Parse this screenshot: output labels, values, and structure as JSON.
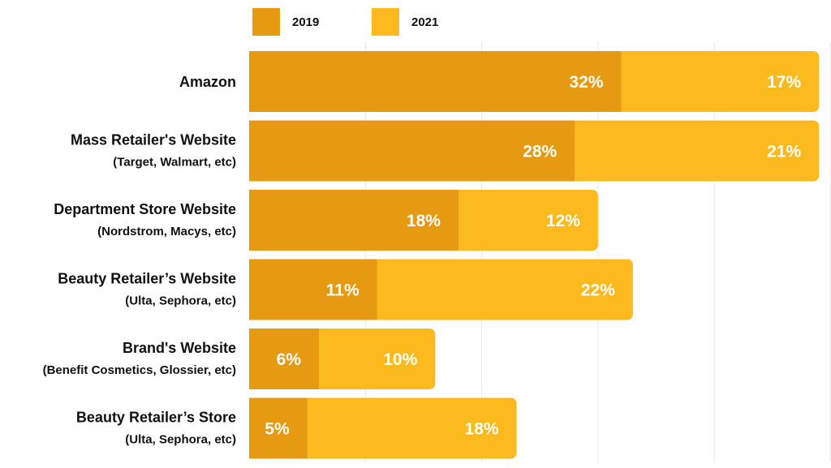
{
  "chart_data": {
    "type": "bar",
    "orientation": "horizontal",
    "stacked": true,
    "categories": [
      "Amazon",
      "Mass Retailer's Website",
      "Department Store Website",
      "Beauty Retailer’s Website",
      "Brand's Website",
      "Beauty Retailer’s Store"
    ],
    "category_subtitles": [
      "",
      "(Target, Walmart, etc)",
      "(Nordstrom, Macys, etc)",
      "(Ulta, Sephora, etc)",
      "(Benefit Cosmetics, Glossier, etc)",
      "(Ulta, Sephora, etc)"
    ],
    "series": [
      {
        "name": "2019",
        "values": [
          32,
          28,
          18,
          11,
          6,
          5
        ],
        "labels": [
          "32%",
          "28%",
          "18%",
          "11%",
          "6%",
          "5%"
        ],
        "color": "#E69A12"
      },
      {
        "name": "2021",
        "values": [
          17,
          21,
          12,
          22,
          10,
          18
        ],
        "labels": [
          "17%",
          "21%",
          "12%",
          "22%",
          "10%",
          "18%"
        ],
        "color": "#FDBA1F"
      }
    ],
    "xlim": [
      0,
      50
    ],
    "grid": true,
    "legend_position": "top"
  }
}
